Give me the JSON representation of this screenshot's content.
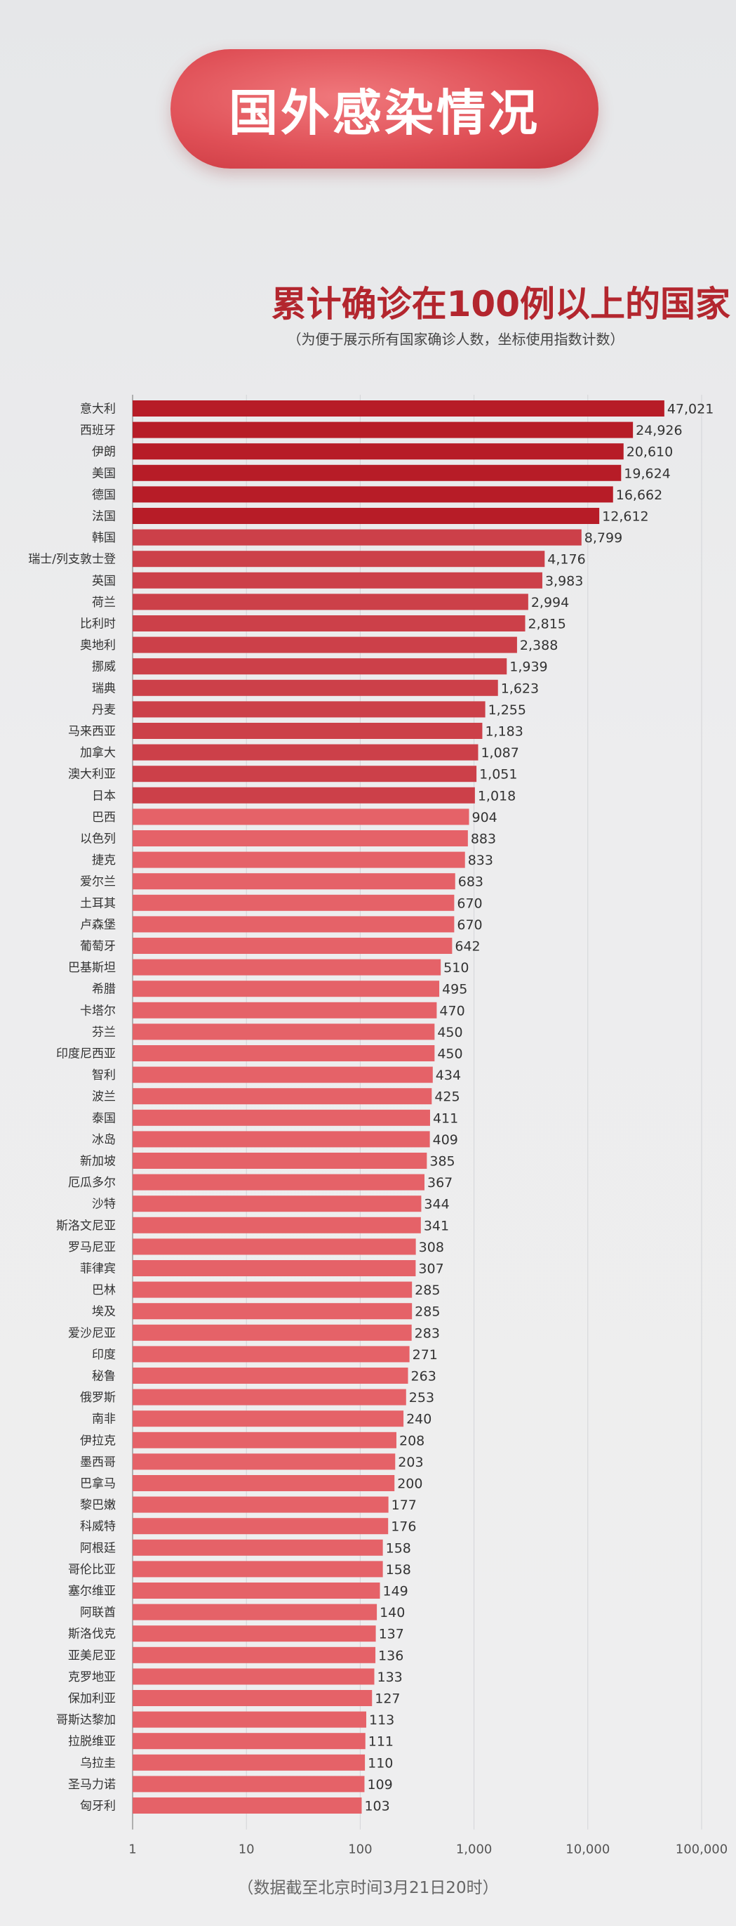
{
  "header": {
    "banner_title": "国外感染情况",
    "subtitle": "累计确诊在100例以上的国家",
    "note": "（为便于展示所有国家确诊人数，坐标使用指数计数）"
  },
  "footer": {
    "source_note": "（数据截至北京时间3月21日20时）"
  },
  "chart_data": {
    "type": "bar",
    "orientation": "horizontal",
    "xscale": "log",
    "xlim": [
      1,
      100000
    ],
    "xticks": [
      "1",
      "10",
      "100",
      "1,000",
      "10,000",
      "100,000"
    ],
    "categories": [
      "意大利",
      "西班牙",
      "伊朗",
      "美国",
      "德国",
      "法国",
      "韩国",
      "瑞士/列支敦士登",
      "英国",
      "荷兰",
      "比利时",
      "奥地利",
      "挪威",
      "瑞典",
      "丹麦",
      "马来西亚",
      "加拿大",
      "澳大利亚",
      "日本",
      "巴西",
      "以色列",
      "捷克",
      "爱尔兰",
      "土耳其",
      "卢森堡",
      "葡萄牙",
      "巴基斯坦",
      "希腊",
      "卡塔尔",
      "芬兰",
      "印度尼西亚",
      "智利",
      "波兰",
      "泰国",
      "冰岛",
      "新加坡",
      "厄瓜多尔",
      "沙特",
      "斯洛文尼亚",
      "罗马尼亚",
      "菲律宾",
      "巴林",
      "埃及",
      "爱沙尼亚",
      "印度",
      "秘鲁",
      "俄罗斯",
      "南非",
      "伊拉克",
      "墨西哥",
      "巴拿马",
      "黎巴嫩",
      "科威特",
      "阿根廷",
      "哥伦比亚",
      "塞尔维亚",
      "阿联酋",
      "斯洛伐克",
      "亚美尼亚",
      "克罗地亚",
      "保加利亚",
      "哥斯达黎加",
      "拉脱维亚",
      "乌拉圭",
      "圣马力诺",
      "匈牙利"
    ],
    "values": [
      47021,
      24926,
      20610,
      19624,
      16662,
      12612,
      8799,
      4176,
      3983,
      2994,
      2815,
      2388,
      1939,
      1623,
      1255,
      1183,
      1087,
      1051,
      1018,
      904,
      883,
      833,
      683,
      670,
      670,
      642,
      510,
      495,
      470,
      450,
      450,
      434,
      425,
      411,
      409,
      385,
      367,
      344,
      341,
      308,
      307,
      285,
      285,
      283,
      271,
      263,
      253,
      240,
      208,
      203,
      200,
      177,
      176,
      158,
      158,
      149,
      140,
      137,
      136,
      133,
      127,
      113,
      111,
      110,
      109,
      103
    ],
    "value_labels": [
      "47,021",
      "24,926",
      "20,610",
      "19,624",
      "16,662",
      "12,612",
      "8,799",
      "4,176",
      "3,983",
      "2,994",
      "2,815",
      "2,388",
      "1,939",
      "1,623",
      "1,255",
      "1,183",
      "1,087",
      "1,051",
      "1,018",
      "904",
      "883",
      "833",
      "683",
      "670",
      "670",
      "642",
      "510",
      "495",
      "470",
      "450",
      "450",
      "434",
      "425",
      "411",
      "409",
      "385",
      "367",
      "344",
      "341",
      "308",
      "307",
      "285",
      "285",
      "283",
      "271",
      "263",
      "253",
      "240",
      "208",
      "203",
      "200",
      "177",
      "176",
      "158",
      "158",
      "149",
      "140",
      "137",
      "136",
      "133",
      "127",
      "113",
      "111",
      "110",
      "109",
      "103"
    ],
    "colors": {
      "dark": "#b71c27",
      "medium": "#cc4049",
      "light": "#e56268"
    },
    "grid": true,
    "legend": "none"
  }
}
